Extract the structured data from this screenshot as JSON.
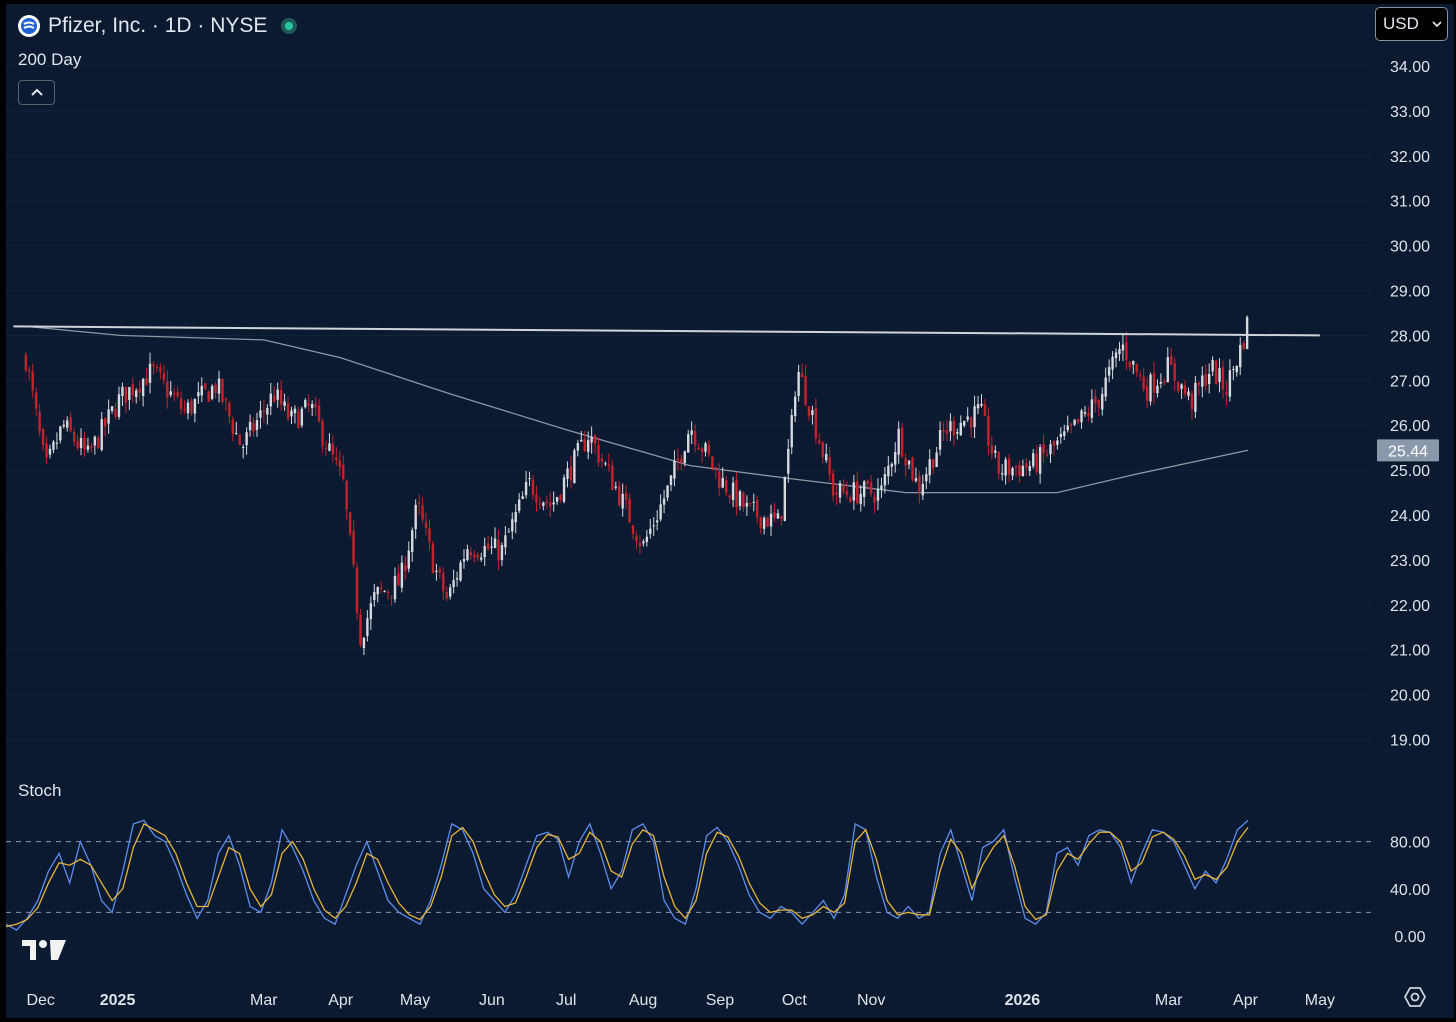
{
  "header": {
    "title": "Pfizer, Inc. · 1D · NYSE",
    "ma_label": "200 Day",
    "stoch_label": "Stoch",
    "currency": "USD"
  },
  "icons": {
    "logo": "pfizer-logo-icon",
    "live": "market-open-dot-icon",
    "collapse": "chevron-up-icon",
    "currency_dropdown": "chevron-down-icon",
    "brand": "tradingview-logo-icon",
    "settings": "gear-icon"
  },
  "colors": {
    "background": "#0b1a30",
    "up_candle": "#d6d9de",
    "down_candle": "#c4232b",
    "resistance_line": "#d0d3d9",
    "ma_line": "#8d96a6",
    "stoch_k": "#5b8def",
    "stoch_d": "#e6b437",
    "price_badge": "#8a98ab"
  },
  "chart_data": [
    {
      "type": "candlestick",
      "title": "Pfizer, Inc. · 1D · NYSE",
      "ylim": [
        18.6,
        34.4
      ],
      "y_ticks": [
        "34.00",
        "33.00",
        "32.00",
        "31.00",
        "30.00",
        "29.00",
        "28.00",
        "27.00",
        "26.00",
        "25.00",
        "24.00",
        "23.00",
        "22.00",
        "21.00",
        "20.00",
        "19.00"
      ],
      "x_ticks": [
        "Dec",
        "2025",
        "Mar",
        "Apr",
        "May",
        "Jun",
        "Jul",
        "Aug",
        "Sep",
        "Oct",
        "Nov",
        "2026",
        "Mar",
        "Apr",
        "May"
      ],
      "anchors": [
        {
          "date": "2024-11-25",
          "price": 27.5
        },
        {
          "date": "2024-12-03",
          "price": 25.0
        },
        {
          "date": "2024-12-10",
          "price": 26.0
        },
        {
          "date": "2024-12-20",
          "price": 25.3
        },
        {
          "date": "2025-01-02",
          "price": 26.6
        },
        {
          "date": "2025-01-15",
          "price": 27.2
        },
        {
          "date": "2025-01-28",
          "price": 26.3
        },
        {
          "date": "2025-02-10",
          "price": 26.9
        },
        {
          "date": "2025-02-20",
          "price": 25.5
        },
        {
          "date": "2025-03-05",
          "price": 26.7
        },
        {
          "date": "2025-03-12",
          "price": 26.1
        },
        {
          "date": "2025-03-20",
          "price": 26.4
        },
        {
          "date": "2025-04-02",
          "price": 24.7
        },
        {
          "date": "2025-04-09",
          "price": 21.3
        },
        {
          "date": "2025-04-15",
          "price": 22.2
        },
        {
          "date": "2025-04-25",
          "price": 22.5
        },
        {
          "date": "2025-05-02",
          "price": 24.2
        },
        {
          "date": "2025-05-09",
          "price": 22.8
        },
        {
          "date": "2025-05-14",
          "price": 22.1
        },
        {
          "date": "2025-05-22",
          "price": 23.3
        },
        {
          "date": "2025-06-05",
          "price": 23.2
        },
        {
          "date": "2025-06-16",
          "price": 24.7
        },
        {
          "date": "2025-06-25",
          "price": 24.2
        },
        {
          "date": "2025-07-10",
          "price": 25.8
        },
        {
          "date": "2025-07-22",
          "price": 24.5
        },
        {
          "date": "2025-08-01",
          "price": 23.3
        },
        {
          "date": "2025-08-12",
          "price": 24.7
        },
        {
          "date": "2025-08-20",
          "price": 26.0
        },
        {
          "date": "2025-09-01",
          "price": 24.8
        },
        {
          "date": "2025-09-12",
          "price": 24.1
        },
        {
          "date": "2025-09-25",
          "price": 23.8
        },
        {
          "date": "2025-09-30",
          "price": 26.0
        },
        {
          "date": "2025-10-02",
          "price": 27.3
        },
        {
          "date": "2025-10-08",
          "price": 26.3
        },
        {
          "date": "2025-10-17",
          "price": 24.5
        },
        {
          "date": "2025-11-05",
          "price": 24.5
        },
        {
          "date": "2025-11-12",
          "price": 25.8
        },
        {
          "date": "2025-11-20",
          "price": 24.6
        },
        {
          "date": "2025-12-01",
          "price": 25.9
        },
        {
          "date": "2025-12-15",
          "price": 26.3
        },
        {
          "date": "2025-12-22",
          "price": 25.0
        },
        {
          "date": "2026-01-05",
          "price": 25.1
        },
        {
          "date": "2026-01-20",
          "price": 25.8
        },
        {
          "date": "2026-02-01",
          "price": 26.6
        },
        {
          "date": "2026-02-10",
          "price": 27.8
        },
        {
          "date": "2026-02-20",
          "price": 26.8
        },
        {
          "date": "2026-03-01",
          "price": 27.3
        },
        {
          "date": "2026-03-10",
          "price": 26.5
        },
        {
          "date": "2026-03-18",
          "price": 27.3
        },
        {
          "date": "2026-03-24",
          "price": 26.8
        },
        {
          "date": "2026-03-30",
          "price": 27.7
        },
        {
          "date": "2026-04-02",
          "price": 28.3
        }
      ],
      "ma_200": [
        {
          "date": "2024-11-25",
          "price": 28.2
        },
        {
          "date": "2025-01-02",
          "price": 28.0
        },
        {
          "date": "2025-03-01",
          "price": 27.9
        },
        {
          "date": "2025-04-01",
          "price": 27.5
        },
        {
          "date": "2025-05-15",
          "price": 26.7
        },
        {
          "date": "2025-07-01",
          "price": 25.9
        },
        {
          "date": "2025-08-20",
          "price": 25.1
        },
        {
          "date": "2025-10-01",
          "price": 24.8
        },
        {
          "date": "2025-11-15",
          "price": 24.5
        },
        {
          "date": "2026-01-15",
          "price": 24.5
        },
        {
          "date": "2026-02-15",
          "price": 24.9
        },
        {
          "date": "2026-04-02",
          "price": 25.44
        }
      ],
      "resistance_line": [
        {
          "date": "2024-11-20",
          "price": 28.2
        },
        {
          "date": "2026-05-01",
          "price": 28.0
        }
      ],
      "last_value_badge": "25.44"
    },
    {
      "type": "line",
      "title": "Stoch",
      "ylim": [
        -5,
        105
      ],
      "y_ticks": [
        "80.00",
        "40.00",
        "0.00"
      ],
      "bands": [
        20,
        80
      ],
      "series": [
        {
          "color": "#5b8def"
        },
        {
          "color": "#e6b437"
        }
      ],
      "k_values": [
        10,
        5,
        15,
        30,
        55,
        70,
        45,
        80,
        60,
        30,
        20,
        55,
        95,
        98,
        85,
        80,
        60,
        35,
        15,
        30,
        70,
        85,
        60,
        25,
        20,
        45,
        90,
        75,
        55,
        30,
        15,
        10,
        35,
        60,
        80,
        55,
        30,
        20,
        15,
        10,
        30,
        60,
        95,
        90,
        70,
        40,
        30,
        20,
        35,
        60,
        85,
        88,
        82,
        50,
        80,
        95,
        70,
        40,
        55,
        90,
        95,
        80,
        30,
        15,
        10,
        40,
        85,
        92,
        80,
        60,
        35,
        20,
        15,
        25,
        20,
        10,
        20,
        30,
        15,
        35,
        95,
        90,
        50,
        20,
        15,
        25,
        15,
        20,
        70,
        90,
        60,
        30,
        75,
        80,
        90,
        50,
        15,
        10,
        20,
        70,
        75,
        60,
        85,
        90,
        88,
        75,
        45,
        70,
        90,
        88,
        80,
        60,
        40,
        55,
        45,
        65,
        90,
        98
      ],
      "d_values": [
        8,
        10,
        14,
        24,
        45,
        62,
        60,
        65,
        60,
        45,
        30,
        40,
        75,
        95,
        90,
        85,
        70,
        45,
        25,
        25,
        50,
        75,
        70,
        40,
        25,
        35,
        70,
        80,
        65,
        40,
        22,
        15,
        25,
        45,
        70,
        65,
        45,
        28,
        18,
        14,
        25,
        50,
        85,
        92,
        80,
        55,
        35,
        25,
        28,
        50,
        75,
        86,
        84,
        65,
        70,
        88,
        80,
        55,
        50,
        78,
        90,
        85,
        50,
        25,
        15,
        30,
        70,
        88,
        84,
        68,
        45,
        28,
        20,
        22,
        22,
        15,
        18,
        25,
        20,
        28,
        80,
        90,
        65,
        30,
        18,
        20,
        18,
        18,
        55,
        82,
        70,
        40,
        60,
        75,
        85,
        60,
        25,
        14,
        18,
        55,
        70,
        65,
        78,
        88,
        88,
        80,
        55,
        62,
        84,
        88,
        82,
        68,
        48,
        52,
        48,
        58,
        80,
        92
      ]
    }
  ]
}
